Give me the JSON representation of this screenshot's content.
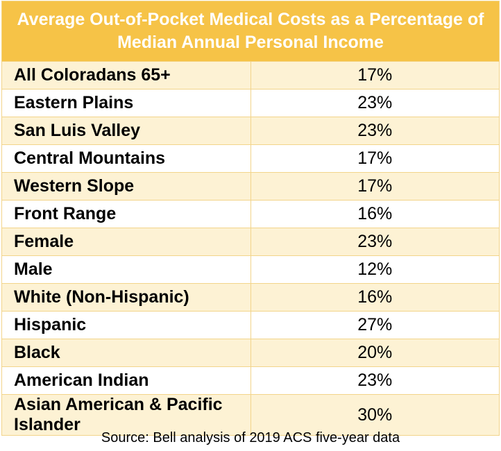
{
  "chart_data": {
    "type": "table",
    "title": "Average Out-of-Pocket Medical Costs as a Percentage of Median Annual Personal Income",
    "rows": [
      {
        "label": "All Coloradans 65+",
        "value": "17%"
      },
      {
        "label": "Eastern Plains",
        "value": "23%"
      },
      {
        "label": "San Luis Valley",
        "value": "23%"
      },
      {
        "label": "Central Mountains",
        "value": "17%"
      },
      {
        "label": "Western Slope",
        "value": "17%"
      },
      {
        "label": "Front Range",
        "value": "16%"
      },
      {
        "label": "Female",
        "value": "23%"
      },
      {
        "label": "Male",
        "value": "12%"
      },
      {
        "label": "White (Non-Hispanic)",
        "value": "16%"
      },
      {
        "label": "Hispanic",
        "value": "27%"
      },
      {
        "label": "Black",
        "value": "20%"
      },
      {
        "label": "American Indian",
        "value": "23%"
      },
      {
        "label": "Asian American & Pacific Islander",
        "value": "30%"
      }
    ],
    "source": "Source: Bell analysis of 2019 ACS five-year data"
  },
  "colors": {
    "header": "#f6c347",
    "band": "#fdf2d4",
    "border": "#f2d48a"
  }
}
